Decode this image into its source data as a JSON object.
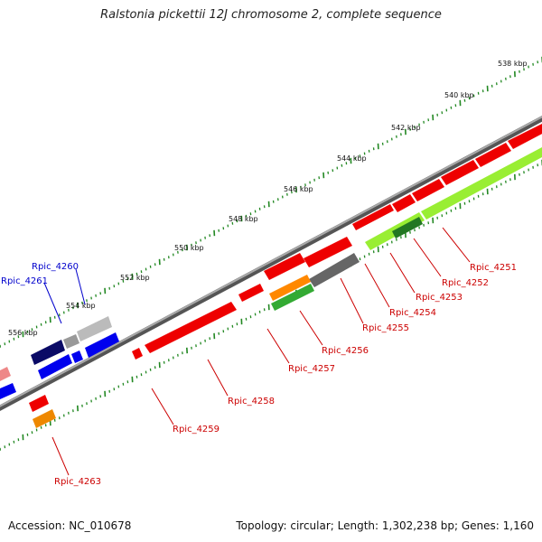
{
  "title": "Ralstonia pickettii 12J chromosome 2, complete sequence",
  "accession": "Accession: NC_010678",
  "summary": "Topology: circular; Length: 1,302,238 bp; Genes: 1,160",
  "ruler": [
    {
      "label": "538 kbp"
    },
    {
      "label": "540 kbp"
    },
    {
      "label": "542 kbp"
    },
    {
      "label": "544 kbp"
    },
    {
      "label": "546 kbp"
    },
    {
      "label": "548 kbp"
    },
    {
      "label": "550 kbp"
    },
    {
      "label": "552 kbp"
    },
    {
      "label": "554 kbp"
    },
    {
      "label": "556 kbp"
    }
  ],
  "genes": [
    {
      "label": "Rpic_4251",
      "color": "#cc0000"
    },
    {
      "label": "Rpic_4252",
      "color": "#cc0000"
    },
    {
      "label": "Rpic_4253",
      "color": "#cc0000"
    },
    {
      "label": "Rpic_4254",
      "color": "#cc0000"
    },
    {
      "label": "Rpic_4255",
      "color": "#cc0000"
    },
    {
      "label": "Rpic_4256",
      "color": "#cc0000"
    },
    {
      "label": "Rpic_4257",
      "color": "#cc0000"
    },
    {
      "label": "Rpic_4258",
      "color": "#cc0000"
    },
    {
      "label": "Rpic_4259",
      "color": "#cc0000"
    },
    {
      "label": "Rpic_4260",
      "color": "#0000cc"
    },
    {
      "label": "Rpic_4261",
      "color": "#0000cc"
    },
    {
      "label": "Rpic_4263",
      "color": "#cc0000"
    }
  ],
  "feature_colors": {
    "cds_forward": "#ff0000",
    "cds_reverse": "#0000ff",
    "rna": "#a8ff3a",
    "other": "#999999",
    "misc": "#ff8800"
  }
}
